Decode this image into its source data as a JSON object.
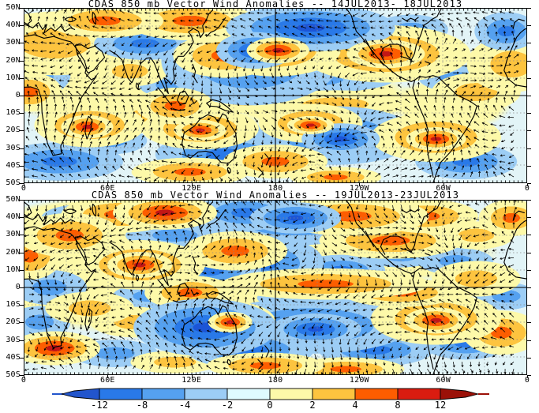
{
  "figure_title": "CDAS 850 mb Vector Wind Anomalies",
  "panels": [
    {
      "title": "CDAS 850 mb Vector Wind Anomalies -- 14JUL2013- 18JUL2013",
      "period": "14JUL2013- 18JUL2013",
      "lat_labels": [
        "50N",
        "40N",
        "30N",
        "20N",
        "10N",
        "0",
        "10S",
        "20S",
        "30S",
        "40S",
        "50S"
      ],
      "lon_labels": [
        "0",
        "60E",
        "120E",
        "180",
        "120W",
        "60W",
        "0"
      ],
      "shading": [
        [
          6,
          20,
          120,
          50,
          1,
          1
        ],
        [
          16,
          7,
          90,
          26,
          2,
          1
        ],
        [
          33,
          7,
          100,
          30,
          2,
          1
        ],
        [
          40,
          27,
          80,
          34,
          2,
          1
        ],
        [
          50,
          24,
          100,
          40,
          2,
          1
        ],
        [
          50.5,
          24,
          48,
          20,
          3,
          1
        ],
        [
          72,
          26,
          130,
          44,
          2,
          1
        ],
        [
          72,
          26,
          60,
          22,
          3,
          1
        ],
        [
          97,
          32,
          70,
          44,
          1,
          1
        ],
        [
          21,
          36,
          60,
          24,
          1,
          1
        ],
        [
          30,
          56,
          60,
          28,
          2,
          1
        ],
        [
          44,
          52,
          70,
          22,
          1,
          1
        ],
        [
          13,
          67,
          85,
          34,
          2,
          1
        ],
        [
          12.5,
          68,
          40,
          18,
          3,
          1
        ],
        [
          25,
          62,
          70,
          26,
          1,
          1
        ],
        [
          35,
          69,
          90,
          32,
          2,
          1
        ],
        [
          35,
          70,
          40,
          16,
          3,
          1
        ],
        [
          50,
          88,
          80,
          26,
          2,
          1
        ],
        [
          33,
          94,
          90,
          22,
          2,
          1
        ],
        [
          57,
          66,
          80,
          30,
          2,
          1
        ],
        [
          57,
          67,
          36,
          14,
          3,
          1
        ],
        [
          62,
          55,
          110,
          22,
          1,
          1
        ],
        [
          82,
          74,
          100,
          38,
          2,
          1
        ],
        [
          82,
          75,
          46,
          18,
          3,
          1
        ],
        [
          90,
          48,
          70,
          30,
          1,
          1
        ],
        [
          62,
          97,
          70,
          16,
          2,
          1
        ],
        [
          1,
          48,
          50,
          30,
          2,
          1
        ],
        [
          20,
          48,
          180,
          55,
          0,
          1
        ],
        [
          58,
          52,
          150,
          45,
          0,
          1
        ],
        [
          10,
          14,
          120,
          35,
          0,
          1
        ],
        [
          85,
          55,
          90,
          40,
          0,
          1
        ],
        [
          8,
          12,
          80,
          24,
          1,
          -1
        ],
        [
          24,
          20,
          80,
          26,
          2,
          -1
        ],
        [
          3,
          38,
          50,
          34,
          1,
          -1
        ],
        [
          29,
          44,
          50,
          20,
          1,
          -1
        ],
        [
          45,
          30,
          140,
          70,
          2,
          -1
        ],
        [
          46,
          24,
          60,
          28,
          3,
          -1
        ],
        [
          57,
          11,
          130,
          36,
          3,
          -1
        ],
        [
          63,
          17,
          90,
          30,
          2,
          -1
        ],
        [
          66,
          13,
          70,
          26,
          2,
          -1
        ],
        [
          77,
          12,
          60,
          24,
          1,
          -1
        ],
        [
          96,
          13,
          50,
          30,
          2,
          -1
        ],
        [
          55,
          41,
          150,
          22,
          1,
          -1
        ],
        [
          86,
          40,
          60,
          22,
          1,
          -1
        ],
        [
          62,
          73,
          130,
          46,
          2,
          -1
        ],
        [
          63,
          75,
          60,
          24,
          3,
          -1
        ],
        [
          40,
          84,
          110,
          34,
          2,
          -1
        ],
        [
          48,
          77,
          70,
          26,
          2,
          -1
        ],
        [
          7,
          88,
          100,
          30,
          2,
          -1
        ],
        [
          88,
          88,
          80,
          28,
          2,
          -1
        ],
        [
          17,
          76,
          60,
          22,
          1,
          -1
        ],
        [
          37,
          14,
          50,
          22,
          1,
          -1
        ]
      ]
    },
    {
      "title": "CDAS 850 mb Vector Wind Anomalies -- 19JUL2013-23JUL2013",
      "period": "19JUL2013-23JUL2013",
      "lat_labels": [
        "50N",
        "40N",
        "30N",
        "20N",
        "10N",
        "0",
        "10S",
        "20S",
        "30S",
        "40S",
        "50S"
      ],
      "lon_labels": [
        "0",
        "60E",
        "120E",
        "180",
        "120W",
        "60W",
        "0"
      ],
      "shading": [
        [
          9,
          20,
          80,
          34,
          2,
          1
        ],
        [
          1,
          32,
          50,
          36,
          2,
          1
        ],
        [
          19,
          8,
          90,
          28,
          2,
          1
        ],
        [
          28,
          7,
          80,
          26,
          3,
          1
        ],
        [
          23,
          37,
          100,
          38,
          2,
          1
        ],
        [
          23,
          37,
          50,
          20,
          3,
          1
        ],
        [
          33,
          53,
          70,
          26,
          2,
          1
        ],
        [
          42,
          29,
          80,
          30,
          2,
          1
        ],
        [
          65,
          9,
          120,
          30,
          2,
          1
        ],
        [
          80,
          9,
          80,
          26,
          2,
          1
        ],
        [
          73,
          23,
          110,
          28,
          2,
          1
        ],
        [
          60,
          48,
          160,
          24,
          2,
          1
        ],
        [
          75,
          53,
          90,
          22,
          2,
          1
        ],
        [
          90,
          45,
          70,
          28,
          1,
          1
        ],
        [
          41,
          70,
          70,
          32,
          2,
          1
        ],
        [
          41,
          70,
          34,
          16,
          3,
          1
        ],
        [
          13,
          62,
          70,
          26,
          1,
          1
        ],
        [
          22,
          70,
          70,
          24,
          1,
          1
        ],
        [
          6,
          85,
          70,
          26,
          3,
          1
        ],
        [
          30,
          93,
          70,
          18,
          1,
          1
        ],
        [
          48,
          95,
          90,
          20,
          2,
          1
        ],
        [
          64,
          97,
          90,
          18,
          2,
          1
        ],
        [
          82,
          68,
          100,
          40,
          2,
          1
        ],
        [
          82,
          69,
          48,
          20,
          3,
          1
        ],
        [
          95,
          76,
          60,
          34,
          2,
          1
        ],
        [
          97,
          10,
          50,
          28,
          2,
          1
        ],
        [
          90,
          20,
          60,
          22,
          1,
          1
        ],
        [
          25,
          50,
          260,
          70,
          0,
          1
        ],
        [
          65,
          30,
          220,
          50,
          0,
          1
        ],
        [
          15,
          12,
          150,
          35,
          0,
          1
        ],
        [
          44,
          7,
          80,
          28,
          2,
          -1
        ],
        [
          54,
          11,
          140,
          40,
          2,
          -1
        ],
        [
          54,
          10,
          70,
          24,
          3,
          -1
        ],
        [
          12,
          10,
          70,
          22,
          1,
          -1
        ],
        [
          30,
          20,
          80,
          22,
          1,
          -1
        ],
        [
          37,
          40,
          80,
          32,
          2,
          -1
        ],
        [
          47,
          36,
          100,
          44,
          2,
          -1
        ],
        [
          5,
          50,
          60,
          28,
          1,
          -1
        ],
        [
          63,
          40,
          70,
          24,
          2,
          -1
        ],
        [
          86,
          35,
          60,
          22,
          1,
          -1
        ],
        [
          36,
          73,
          110,
          44,
          3,
          -1
        ],
        [
          45,
          86,
          100,
          30,
          2,
          -1
        ],
        [
          57,
          72,
          160,
          44,
          2,
          -1
        ],
        [
          58,
          74,
          70,
          24,
          3,
          -1
        ],
        [
          70,
          86,
          90,
          26,
          2,
          -1
        ],
        [
          88,
          82,
          70,
          26,
          2,
          -1
        ],
        [
          3,
          70,
          50,
          26,
          1,
          -1
        ],
        [
          18,
          88,
          70,
          22,
          1,
          -1
        ],
        [
          25,
          55,
          60,
          20,
          1,
          -1
        ],
        [
          55,
          56,
          70,
          18,
          1,
          -1
        ],
        [
          96,
          55,
          50,
          22,
          1,
          -1
        ],
        [
          75,
          32,
          60,
          18,
          1,
          -1
        ]
      ]
    }
  ],
  "colorbar": {
    "tick_labels": [
      "-12",
      "-8",
      "-4",
      "-2",
      "0",
      "2",
      "4",
      "8",
      "12"
    ],
    "segment_colors": [
      "#2979e8",
      "#55a1f0",
      "#9ccdf5",
      "#dffbff",
      "#fdf9a9",
      "#fdc43f",
      "#fd5d00",
      "#da1c10"
    ],
    "left_arrow_color": "#2255cc",
    "right_arrow_color": "#9b1007"
  },
  "chart_data": {
    "type": "heatmap",
    "title": "CDAS 850 mb Vector Wind Anomalies",
    "panels": [
      {
        "period": "14JUL2013- 18JUL2013"
      },
      {
        "period": "19JUL2013-23JUL2013"
      }
    ],
    "x_ticks": [
      "0",
      "60E",
      "120E",
      "180",
      "120W",
      "60W",
      "0"
    ],
    "y_ticks": [
      "50N",
      "40N",
      "30N",
      "20N",
      "10N",
      "0",
      "10S",
      "20S",
      "30S",
      "40S",
      "50S"
    ],
    "colorbar_breaks": [
      -12,
      -8,
      -4,
      -2,
      0,
      2,
      4,
      8,
      12
    ],
    "legend_position": "bottom",
    "grid": "dashed 10deg lat / 30deg lon, solid equator and 180 meridian",
    "overlay": "wind anomaly vectors (arrows) and coastlines"
  }
}
